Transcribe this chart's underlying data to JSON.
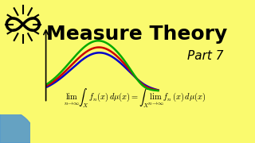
{
  "bg_color": "#FAFA6E",
  "title": "Measure Theory",
  "part": "Part 7",
  "formula": "\\lim_{n\\to\\infty} \\int_X f_n(x)\\, d\\mu(x) = \\int_X \\lim_{n\\to\\infty} f_n(x)\\, d\\mu(x)",
  "curve_colors": [
    "#0000CC",
    "#CC0000",
    "#00AA00"
  ],
  "curve_offsets": [
    0.0,
    0.07,
    0.15
  ],
  "title_fontsize": 18,
  "part_fontsize": 11,
  "formula_fontsize": 7.5
}
